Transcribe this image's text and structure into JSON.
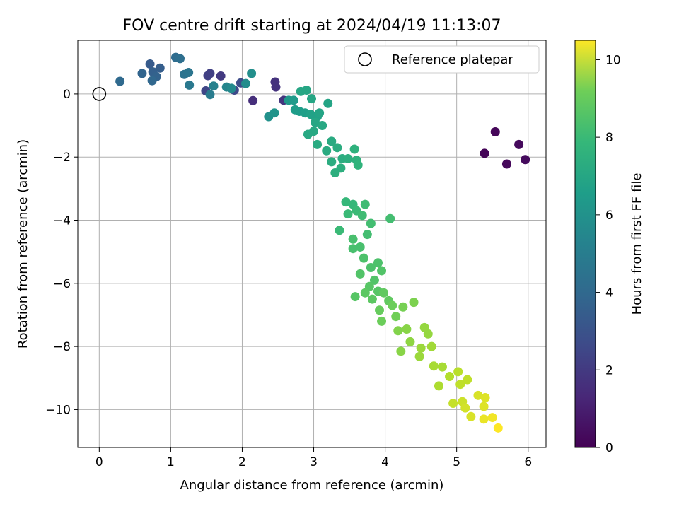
{
  "chart_data": {
    "type": "scatter",
    "title": "FOV centre drift starting at 2024/04/19 11:13:07",
    "xlabel": "Angular distance from reference (arcmin)",
    "ylabel": "Rotation from reference (arcmin)",
    "xlim": [
      -0.3,
      6.25
    ],
    "ylim": [
      -11.2,
      1.7
    ],
    "xticks": [
      0,
      1,
      2,
      3,
      4,
      5,
      6
    ],
    "yticks": [
      0,
      -2,
      -4,
      -6,
      -8,
      -10
    ],
    "xtick_labels": [
      "0",
      "1",
      "2",
      "3",
      "4",
      "5",
      "6"
    ],
    "ytick_labels": [
      "0",
      "−2",
      "−4",
      "−6",
      "−8",
      "−10"
    ],
    "grid": true,
    "legend": {
      "placement": "top-right",
      "entries": [
        "Reference platepar"
      ]
    },
    "colorbar": {
      "label": "Hours from first FF file",
      "range": [
        0,
        10.5
      ],
      "ticks": [
        0,
        2,
        4,
        6,
        8,
        10
      ],
      "tick_labels": [
        "0",
        "2",
        "4",
        "6",
        "8",
        "10"
      ],
      "colormap": "viridis"
    },
    "reference_point": {
      "x": 0,
      "y": 0
    },
    "points": [
      {
        "x": 5.39,
        "y": -1.88,
        "c": 0.1
      },
      {
        "x": 5.54,
        "y": -1.2,
        "c": 0.15
      },
      {
        "x": 5.7,
        "y": -2.22,
        "c": 0.2
      },
      {
        "x": 5.87,
        "y": -1.6,
        "c": 0.25
      },
      {
        "x": 5.96,
        "y": -2.08,
        "c": 0.3
      },
      {
        "x": 2.15,
        "y": -0.21,
        "c": 1.4
      },
      {
        "x": 2.47,
        "y": 0.22,
        "c": 1.5
      },
      {
        "x": 2.46,
        "y": 0.38,
        "c": 1.5
      },
      {
        "x": 2.58,
        "y": -0.2,
        "c": 1.6
      },
      {
        "x": 1.7,
        "y": 0.57,
        "c": 1.8
      },
      {
        "x": 1.52,
        "y": 0.58,
        "c": 2.0
      },
      {
        "x": 1.55,
        "y": 0.65,
        "c": 2.0
      },
      {
        "x": 1.49,
        "y": 0.1,
        "c": 2.2
      },
      {
        "x": 1.89,
        "y": 0.12,
        "c": 2.3
      },
      {
        "x": 1.98,
        "y": 0.35,
        "c": 2.4
      },
      {
        "x": 0.71,
        "y": 0.95,
        "c": 3.0
      },
      {
        "x": 0.85,
        "y": 0.82,
        "c": 3.1
      },
      {
        "x": 0.75,
        "y": 0.7,
        "c": 3.2
      },
      {
        "x": 0.8,
        "y": 0.55,
        "c": 3.3
      },
      {
        "x": 0.6,
        "y": 0.65,
        "c": 3.4
      },
      {
        "x": 0.74,
        "y": 0.42,
        "c": 3.5
      },
      {
        "x": 0.29,
        "y": 0.4,
        "c": 3.6
      },
      {
        "x": 1.07,
        "y": 1.16,
        "c": 3.7
      },
      {
        "x": 1.13,
        "y": 1.12,
        "c": 3.8
      },
      {
        "x": 1.19,
        "y": 0.62,
        "c": 4.0
      },
      {
        "x": 1.25,
        "y": 0.68,
        "c": 4.1
      },
      {
        "x": 1.26,
        "y": 0.28,
        "c": 4.2
      },
      {
        "x": 1.55,
        "y": -0.02,
        "c": 4.4
      },
      {
        "x": 1.6,
        "y": 0.25,
        "c": 4.6
      },
      {
        "x": 1.78,
        "y": 0.22,
        "c": 4.8
      },
      {
        "x": 1.85,
        "y": 0.18,
        "c": 5.0
      },
      {
        "x": 2.05,
        "y": 0.33,
        "c": 5.1
      },
      {
        "x": 2.13,
        "y": 0.65,
        "c": 5.2
      },
      {
        "x": 2.37,
        "y": -0.72,
        "c": 5.3
      },
      {
        "x": 2.45,
        "y": -0.6,
        "c": 5.4
      },
      {
        "x": 2.65,
        "y": -0.2,
        "c": 5.6
      },
      {
        "x": 2.72,
        "y": -0.2,
        "c": 5.7
      },
      {
        "x": 2.74,
        "y": -0.5,
        "c": 5.8
      },
      {
        "x": 2.8,
        "y": -0.55,
        "c": 5.8
      },
      {
        "x": 2.88,
        "y": -0.6,
        "c": 5.9
      },
      {
        "x": 2.96,
        "y": -0.65,
        "c": 6.0
      },
      {
        "x": 3.05,
        "y": -0.72,
        "c": 6.0
      },
      {
        "x": 3.08,
        "y": -0.6,
        "c": 6.1
      },
      {
        "x": 2.82,
        "y": 0.08,
        "c": 6.2
      },
      {
        "x": 2.9,
        "y": 0.12,
        "c": 6.2
      },
      {
        "x": 3.2,
        "y": -0.3,
        "c": 6.1
      },
      {
        "x": 2.97,
        "y": -0.15,
        "c": 6.2
      },
      {
        "x": 3.02,
        "y": -0.9,
        "c": 6.2
      },
      {
        "x": 3.12,
        "y": -1.0,
        "c": 6.3
      },
      {
        "x": 2.92,
        "y": -1.28,
        "c": 6.3
      },
      {
        "x": 3.0,
        "y": -1.18,
        "c": 6.3
      },
      {
        "x": 3.05,
        "y": -1.6,
        "c": 6.4
      },
      {
        "x": 3.18,
        "y": -1.8,
        "c": 6.4
      },
      {
        "x": 3.25,
        "y": -1.5,
        "c": 6.4
      },
      {
        "x": 3.33,
        "y": -1.7,
        "c": 6.5
      },
      {
        "x": 3.25,
        "y": -2.15,
        "c": 6.5
      },
      {
        "x": 3.4,
        "y": -2.05,
        "c": 6.5
      },
      {
        "x": 3.38,
        "y": -2.35,
        "c": 6.6
      },
      {
        "x": 3.3,
        "y": -2.5,
        "c": 6.6
      },
      {
        "x": 3.48,
        "y": -2.05,
        "c": 6.6
      },
      {
        "x": 3.57,
        "y": -1.75,
        "c": 6.7
      },
      {
        "x": 3.6,
        "y": -2.1,
        "c": 6.7
      },
      {
        "x": 3.62,
        "y": -2.25,
        "c": 6.8
      },
      {
        "x": 3.45,
        "y": -3.42,
        "c": 7.0
      },
      {
        "x": 3.55,
        "y": -3.5,
        "c": 7.0
      },
      {
        "x": 3.48,
        "y": -3.8,
        "c": 7.1
      },
      {
        "x": 3.6,
        "y": -3.7,
        "c": 7.1
      },
      {
        "x": 3.36,
        "y": -4.32,
        "c": 7.1
      },
      {
        "x": 3.72,
        "y": -3.5,
        "c": 7.2
      },
      {
        "x": 3.68,
        "y": -3.85,
        "c": 7.2
      },
      {
        "x": 3.8,
        "y": -4.1,
        "c": 7.3
      },
      {
        "x": 3.75,
        "y": -4.45,
        "c": 7.3
      },
      {
        "x": 4.07,
        "y": -3.95,
        "c": 7.3
      },
      {
        "x": 3.55,
        "y": -4.6,
        "c": 7.4
      },
      {
        "x": 3.65,
        "y": -4.85,
        "c": 7.4
      },
      {
        "x": 3.55,
        "y": -4.9,
        "c": 7.4
      },
      {
        "x": 3.7,
        "y": -5.2,
        "c": 7.5
      },
      {
        "x": 3.8,
        "y": -5.5,
        "c": 7.5
      },
      {
        "x": 3.9,
        "y": -5.35,
        "c": 7.5
      },
      {
        "x": 3.65,
        "y": -5.7,
        "c": 7.6
      },
      {
        "x": 3.85,
        "y": -5.9,
        "c": 7.6
      },
      {
        "x": 3.95,
        "y": -5.6,
        "c": 7.6
      },
      {
        "x": 3.78,
        "y": -6.1,
        "c": 7.7
      },
      {
        "x": 3.9,
        "y": -6.25,
        "c": 7.7
      },
      {
        "x": 3.58,
        "y": -6.42,
        "c": 7.7
      },
      {
        "x": 3.72,
        "y": -6.3,
        "c": 7.8
      },
      {
        "x": 3.82,
        "y": -6.5,
        "c": 7.8
      },
      {
        "x": 3.98,
        "y": -6.3,
        "c": 7.9
      },
      {
        "x": 4.05,
        "y": -6.55,
        "c": 7.9
      },
      {
        "x": 3.92,
        "y": -6.85,
        "c": 8.0
      },
      {
        "x": 4.1,
        "y": -6.7,
        "c": 8.1
      },
      {
        "x": 3.95,
        "y": -7.2,
        "c": 8.1
      },
      {
        "x": 4.15,
        "y": -7.05,
        "c": 8.2
      },
      {
        "x": 4.25,
        "y": -6.75,
        "c": 8.3
      },
      {
        "x": 4.4,
        "y": -6.6,
        "c": 8.4
      },
      {
        "x": 4.18,
        "y": -7.5,
        "c": 8.5
      },
      {
        "x": 4.3,
        "y": -7.45,
        "c": 8.6
      },
      {
        "x": 4.22,
        "y": -8.15,
        "c": 8.6
      },
      {
        "x": 4.35,
        "y": -7.85,
        "c": 8.7
      },
      {
        "x": 4.55,
        "y": -7.4,
        "c": 8.8
      },
      {
        "x": 4.6,
        "y": -7.6,
        "c": 8.8
      },
      {
        "x": 4.5,
        "y": -8.05,
        "c": 8.9
      },
      {
        "x": 4.48,
        "y": -8.32,
        "c": 8.9
      },
      {
        "x": 4.65,
        "y": -8.0,
        "c": 9.0
      },
      {
        "x": 4.68,
        "y": -8.62,
        "c": 9.1
      },
      {
        "x": 4.8,
        "y": -8.65,
        "c": 9.1
      },
      {
        "x": 4.75,
        "y": -9.25,
        "c": 9.2
      },
      {
        "x": 4.9,
        "y": -8.95,
        "c": 9.3
      },
      {
        "x": 5.02,
        "y": -8.8,
        "c": 9.4
      },
      {
        "x": 5.05,
        "y": -9.2,
        "c": 9.5
      },
      {
        "x": 5.15,
        "y": -9.05,
        "c": 9.5
      },
      {
        "x": 4.95,
        "y": -9.8,
        "c": 9.6
      },
      {
        "x": 5.08,
        "y": -9.75,
        "c": 9.7
      },
      {
        "x": 5.12,
        "y": -9.95,
        "c": 9.8
      },
      {
        "x": 5.2,
        "y": -10.22,
        "c": 9.9
      },
      {
        "x": 5.3,
        "y": -9.55,
        "c": 9.9
      },
      {
        "x": 5.38,
        "y": -9.9,
        "c": 10.0
      },
      {
        "x": 5.4,
        "y": -9.62,
        "c": 10.0
      },
      {
        "x": 5.38,
        "y": -10.3,
        "c": 10.2
      },
      {
        "x": 5.5,
        "y": -10.25,
        "c": 10.3
      },
      {
        "x": 5.58,
        "y": -10.58,
        "c": 10.5
      }
    ]
  }
}
